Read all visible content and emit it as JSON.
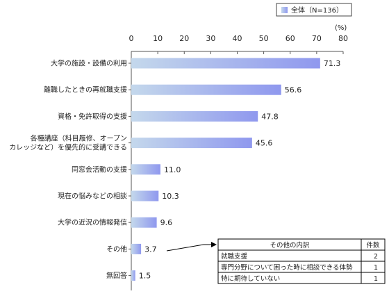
{
  "chart_data": {
    "type": "bar",
    "orientation": "horizontal",
    "unit_label": "(%)",
    "legend": {
      "label": "全体（N=136）",
      "placement": "top-right"
    },
    "xlim": [
      0,
      80
    ],
    "ticks": [
      0,
      10,
      20,
      30,
      40,
      50,
      60,
      70,
      80
    ],
    "grid": false,
    "categories": [
      [
        "大学の施設・設備の利用"
      ],
      [
        "離職したときの再就職支援"
      ],
      [
        "資格・免許取得の支援"
      ],
      [
        "各種講座（科目履修、オープン",
        "カレッジなど）を優先的に受講できる"
      ],
      [
        "同窓会活動の支援"
      ],
      [
        "現在の悩みなどの相談"
      ],
      [
        "大学の近況の情報発信"
      ],
      [
        "その他"
      ],
      [
        "無回答"
      ]
    ],
    "values": [
      71.3,
      56.6,
      47.8,
      45.6,
      11.0,
      10.3,
      9.6,
      3.7,
      1.5
    ],
    "value_labels": [
      "71.3",
      "56.6",
      "47.8",
      "45.6",
      "11.0",
      "10.3",
      "9.6",
      "3.7",
      "1.5"
    ],
    "colors": {
      "bar_start": "#c4d8ec",
      "bar_end": "#8f98ee",
      "axis": "#555555"
    },
    "other_breakdown": {
      "headers": [
        "その他の内訳",
        "件数"
      ],
      "rows": [
        [
          "就職支援",
          "2"
        ],
        [
          "専門分野について困った時に相談できる体勢",
          "1"
        ],
        [
          "特に期待していない",
          "1"
        ]
      ]
    }
  }
}
